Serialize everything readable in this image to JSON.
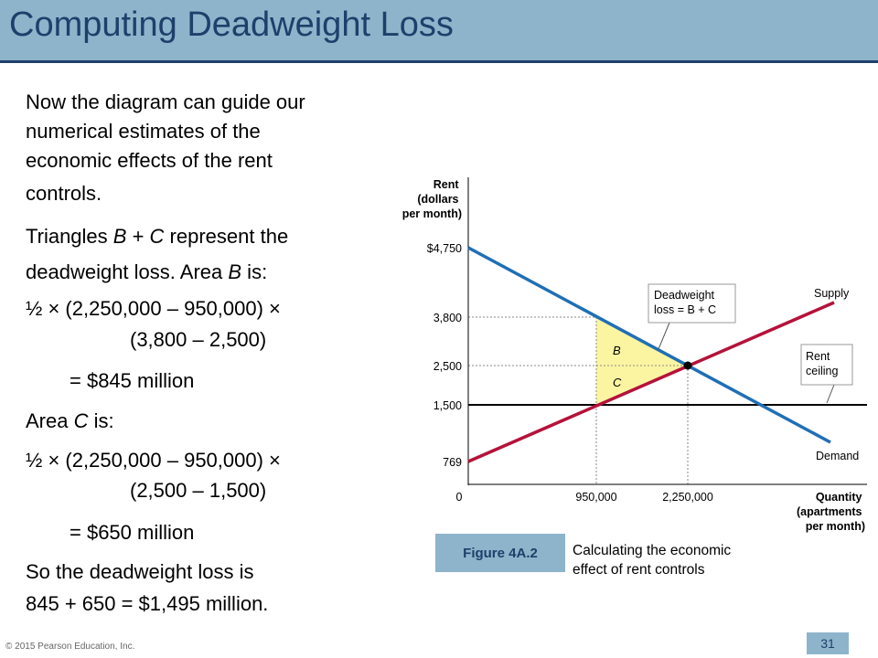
{
  "slide": {
    "title": "Computing Deadweight Loss",
    "page_number": "31",
    "copyright": "© 2015 Pearson Education, Inc."
  },
  "body": {
    "p1_l1": "Now the diagram can guide our",
    "p1_l2": "numerical estimates of the",
    "p1_l3": "economic effects of the rent",
    "p1_l4": "controls.",
    "p2_l1_pre": "Triangles ",
    "p2_l1_b": "B",
    "p2_l1_mid": " + ",
    "p2_l1_c": "C",
    "p2_l1_post": " represent the",
    "p2_l2_pre": "deadweight loss. Area ",
    "p2_l2_b": "B",
    "p2_l2_post": " is:",
    "f1_l1": "½ × (2,250,000 – 950,000) ×",
    "f1_l2": "(3,800 – 2,500)",
    "f1_result": "= $845 million",
    "p3_pre": "Area ",
    "p3_c": "C",
    "p3_post": " is:",
    "f2_l1": "½ × (2,250,000 – 950,000) ×",
    "f2_l2": "(2,500 – 1,500)",
    "f2_result": "= $650 million",
    "p4_l1": "So the deadweight loss is",
    "p4_l2": "845 + 650 = $1,495 million."
  },
  "figure": {
    "badge": "Figure 4A.2",
    "caption_l1": "Calculating the economic",
    "caption_l2": "effect of rent controls"
  },
  "diagram": {
    "y_title": [
      "Rent",
      "(dollars",
      "per month)"
    ],
    "x_title": [
      "Quantity",
      "(apartments",
      "per month)"
    ],
    "y_ticks": [
      "$4,750",
      "3,800",
      "2,500",
      "1,500",
      "769"
    ],
    "x_ticks": [
      "0",
      "950,000",
      "2,250,000"
    ],
    "supply_label": "Supply",
    "demand_label": "Demand",
    "deadweight_label": [
      "Deadweight",
      "loss = B + C"
    ],
    "ceiling_label": [
      "Rent",
      "ceiling"
    ],
    "area_b": "B",
    "area_c": "C",
    "colors": {
      "supply": "#b5123a",
      "demand": "#1f6fb5",
      "ceiling": "#000000",
      "deadweight": "#fbf5a2",
      "guide": "#8a8a8a"
    }
  }
}
